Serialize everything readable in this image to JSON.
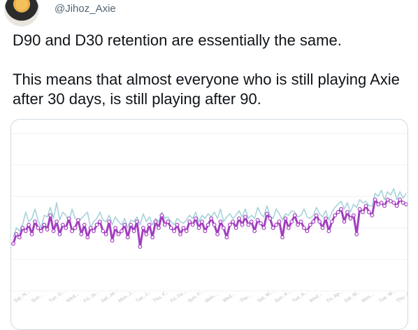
{
  "tweet": {
    "handle": "@Jihoz_Axie",
    "line1": "D90 and D30 retention are essentially the same.",
    "line2": "This means that almost everyone who is still playing Axie after 30 days, is still playing after 90."
  },
  "colors": {
    "d30_series": "#a6d3da",
    "d90_series": "#a23fbf",
    "axis_text": "#b8bec4"
  },
  "chart_data": {
    "type": "line",
    "title": "",
    "xlabel": "",
    "ylabel": "",
    "x_tick_labels": [
      "Sat, N...",
      "Sun...",
      "Tue, D...",
      "Wed...",
      "Fri, Ja...",
      "Sat, Ja...",
      "Mon, J...",
      "Tue, J...",
      "Thu, F...",
      "Fri, Fe...",
      "Sun, F...",
      "Mon...",
      "Wed...",
      "Thu...",
      "Sat, M...",
      "Sun, A...",
      "Tue, A...",
      "Wed...",
      "Fri, Ap...",
      "Sat, M...",
      "Mon...",
      "Tue, M...",
      "Thu, J..."
    ],
    "ylim": [
      0,
      100
    ],
    "grid": true,
    "series": [
      {
        "values": [
          34,
          40,
          38,
          42,
          50,
          44,
          46,
          52,
          45,
          40,
          48,
          47,
          53,
          46,
          56,
          45,
          50,
          48,
          44,
          52,
          46,
          44,
          46,
          48,
          50,
          40,
          44,
          46,
          50,
          45,
          44,
          48,
          42,
          47,
          44,
          42,
          46,
          40,
          45,
          44,
          47,
          42,
          49,
          44,
          47,
          42,
          46,
          44,
          50,
          46,
          47,
          44,
          42,
          46,
          44,
          43,
          45,
          48,
          46,
          50,
          44,
          48,
          46,
          49,
          47,
          50,
          46,
          52,
          44,
          47,
          49,
          46,
          48,
          51,
          47,
          52,
          46,
          48,
          46,
          53,
          49,
          47,
          54,
          48,
          46,
          52,
          49,
          45,
          49,
          48,
          51,
          50,
          47,
          48,
          52,
          47,
          46,
          48,
          53,
          49,
          47,
          51,
          45,
          50,
          53,
          55,
          57,
          52,
          56,
          50,
          55,
          53,
          58,
          56,
          57,
          54,
          54,
          62,
          60,
          64,
          58,
          63,
          61,
          65,
          58,
          63,
          59,
          62
        ]
      },
      {
        "values": [
          30,
          36,
          34,
          40,
          38,
          42,
          36,
          44,
          40,
          38,
          42,
          39,
          48,
          38,
          44,
          36,
          42,
          40,
          46,
          38,
          40,
          45,
          36,
          42,
          34,
          40,
          38,
          42,
          44,
          38,
          36,
          44,
          32,
          40,
          36,
          38,
          42,
          34,
          42,
          38,
          44,
          28,
          40,
          36,
          42,
          34,
          44,
          40,
          48,
          42,
          44,
          40,
          38,
          42,
          36,
          40,
          38,
          44,
          42,
          46,
          40,
          44,
          38,
          42,
          46,
          42,
          36,
          44,
          40,
          34,
          42,
          44,
          40,
          46,
          42,
          47,
          42,
          44,
          38,
          45,
          43,
          40,
          49,
          46,
          40,
          42,
          44,
          34,
          46,
          40,
          44,
          48,
          42,
          44,
          40,
          38,
          42,
          44,
          48,
          44,
          40,
          46,
          38,
          44,
          48,
          50,
          52,
          44,
          50,
          46,
          48,
          36,
          52,
          50,
          54,
          50,
          48,
          58,
          55,
          56,
          54,
          58,
          57,
          56,
          54,
          58,
          56,
          55
        ]
      }
    ]
  }
}
